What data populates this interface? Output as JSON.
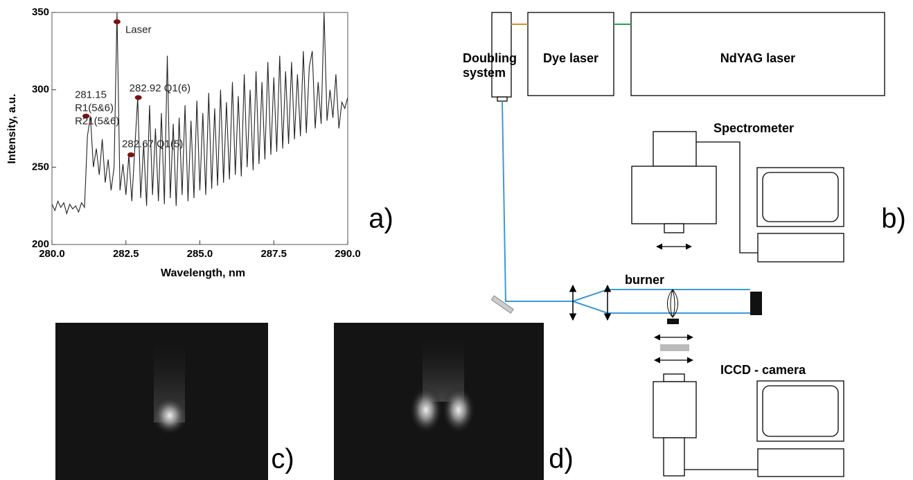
{
  "chart_data": {
    "type": "line",
    "panel": "a)",
    "xlabel": "Wavelength, nm",
    "ylabel": "Intensity, a.u.",
    "x": [
      280.0,
      280.1,
      280.2,
      280.3,
      280.4,
      280.5,
      280.6,
      280.7,
      280.8,
      280.9,
      281.0,
      281.1,
      281.2,
      281.3,
      281.4,
      281.5,
      281.6,
      281.7,
      281.8,
      281.9,
      282.0,
      282.1,
      282.2,
      282.3,
      282.4,
      282.5,
      282.6,
      282.7,
      282.8,
      282.9,
      283.0,
      283.1,
      283.2,
      283.3,
      283.4,
      283.5,
      283.6,
      283.7,
      283.8,
      283.9,
      284.0,
      284.1,
      284.2,
      284.3,
      284.4,
      284.5,
      284.6,
      284.7,
      284.8,
      284.9,
      285.0,
      285.1,
      285.2,
      285.3,
      285.4,
      285.5,
      285.6,
      285.7,
      285.8,
      285.9,
      286.0,
      286.1,
      286.2,
      286.3,
      286.4,
      286.5,
      286.6,
      286.7,
      286.8,
      286.9,
      287.0,
      287.1,
      287.2,
      287.3,
      287.4,
      287.5,
      287.6,
      287.7,
      287.8,
      287.9,
      288.0,
      288.1,
      288.2,
      288.3,
      288.4,
      288.5,
      288.6,
      288.7,
      288.8,
      288.9,
      289.0,
      289.1,
      289.2,
      289.3,
      289.4,
      289.5,
      289.6,
      289.7,
      289.8,
      289.9,
      290.0
    ],
    "values": [
      226,
      222,
      228,
      224,
      227,
      220,
      226,
      223,
      225,
      221,
      227,
      224,
      270,
      283,
      250,
      262,
      245,
      268,
      240,
      255,
      235,
      250,
      350,
      235,
      252,
      232,
      258,
      228,
      262,
      295,
      230,
      265,
      225,
      290,
      232,
      275,
      228,
      285,
      226,
      322,
      230,
      278,
      225,
      282,
      232,
      290,
      228,
      280,
      230,
      293,
      235,
      285,
      232,
      298,
      236,
      288,
      238,
      300,
      240,
      292,
      242,
      305,
      245,
      296,
      244,
      310,
      250,
      300,
      248,
      312,
      252,
      305,
      255,
      318,
      258,
      308,
      260,
      322,
      262,
      312,
      265,
      318,
      268,
      310,
      270,
      325,
      272,
      315,
      325,
      275,
      305,
      278,
      350,
      280,
      300,
      282,
      310,
      275,
      292,
      288,
      295
    ],
    "color": "#222222",
    "xlim": [
      280,
      290
    ],
    "ylim": [
      200,
      350
    ],
    "xticks": [
      {
        "value": 280,
        "label": "280.0"
      },
      {
        "value": 282.5,
        "label": "282.5"
      },
      {
        "value": 285,
        "label": "285.0"
      },
      {
        "value": 287.5,
        "label": "287.5"
      },
      {
        "value": 290,
        "label": "290.0"
      }
    ],
    "yticks": [
      200,
      250,
      300,
      350
    ],
    "annotations": [
      {
        "lines": [
          "Laser"
        ],
        "x": 282.2,
        "y": 344
      },
      {
        "lines": [
          "282.92 Q1(6)"
        ],
        "x": 282.92,
        "y": 295
      },
      {
        "lines": [
          "281.15",
          "R1(5&6)",
          "R21(5&6)"
        ],
        "x": 281.15,
        "y": 283
      },
      {
        "lines": [
          "282.67 Q1(5)"
        ],
        "x": 282.67,
        "y": 258
      }
    ]
  },
  "diagram": {
    "panel": "b)",
    "doubling": [
      "Doubling",
      "system"
    ],
    "dye": "Dye laser",
    "ndyag": "NdYAG laser",
    "spectrometer": "Spectrometer",
    "burner": "burner",
    "camera": "ICCD - camera"
  },
  "images": [
    {
      "panel": "c)"
    },
    {
      "panel": "d)"
    }
  ]
}
